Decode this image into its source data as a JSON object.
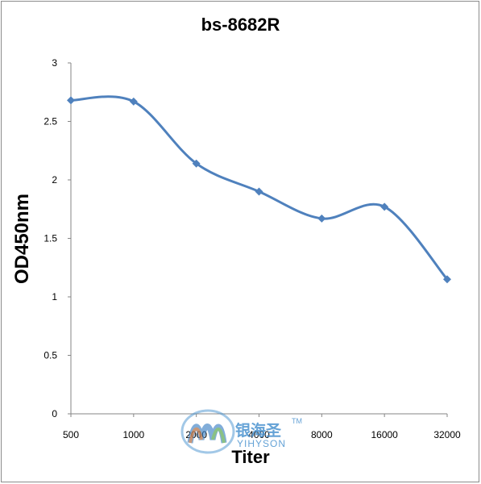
{
  "chart_data": {
    "type": "line",
    "title": "bs-8682R",
    "xlabel": "Titer",
    "ylabel": "OD450nm",
    "categories": [
      "500",
      "1000",
      "2000",
      "4000",
      "8000",
      "16000",
      "32000"
    ],
    "values": [
      2.68,
      2.67,
      2.14,
      1.9,
      1.67,
      1.77,
      1.15
    ],
    "y_ticks": [
      "0",
      "0.5",
      "1",
      "1.5",
      "2",
      "2.5",
      "3"
    ],
    "ylim": [
      0,
      3
    ],
    "grid": false,
    "legend": "none",
    "line_color": "#4f81bd",
    "smooth": true,
    "marker": "diamond"
  },
  "watermark": {
    "name_cn": "银海圣",
    "name_en": "YIHYSON",
    "tm": "TM"
  }
}
